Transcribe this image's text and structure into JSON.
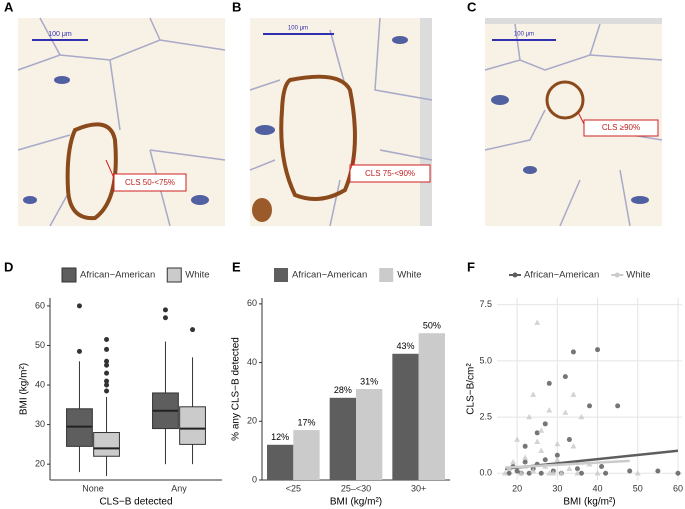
{
  "panels": [
    {
      "letter": "A",
      "scale_bar": "100 μm",
      "callout": "CLS 50-<75%"
    },
    {
      "letter": "B",
      "scale_bar": "100 μm",
      "callout": "CLS 75-<90%"
    },
    {
      "letter": "C",
      "scale_bar": "100 μm",
      "callout": "CLS ≥90%"
    }
  ],
  "chart_data": [
    {
      "type": "box",
      "panel_label": "D",
      "x_label": "CLS−B detected",
      "y_label": "BMI (kg/m²)",
      "categories": [
        "None",
        "Any"
      ],
      "ylim": [
        16,
        62
      ],
      "yticks": [
        20,
        30,
        40,
        50,
        60
      ],
      "grid": false,
      "legend": "top",
      "series": [
        {
          "name": "African−American",
          "color": "#5e5e5e",
          "values": [
            {
              "low": 18,
              "q1": 24.5,
              "median": 29.5,
              "q3": 34,
              "high": 46,
              "outliers": [
                48.5,
                60
              ]
            },
            {
              "low": 20,
              "q1": 29,
              "median": 33.5,
              "q3": 38,
              "high": 51,
              "outliers": [
                57,
                59
              ]
            }
          ]
        },
        {
          "name": "White",
          "color": "#cbcbcb",
          "values": [
            {
              "low": 17,
              "q1": 22,
              "median": 24,
              "q3": 28,
              "high": 37,
              "outliers": [
                38.5,
                40,
                41,
                43,
                45,
                46,
                49,
                51.5
              ]
            },
            {
              "low": 20,
              "q1": 25,
              "median": 29,
              "q3": 34.5,
              "high": 47,
              "outliers": [
                54
              ]
            }
          ]
        }
      ]
    },
    {
      "type": "bar",
      "panel_label": "E",
      "x_label": "BMI (kg/m²)",
      "y_label": "% any CLS−B detected",
      "categories": [
        "<25",
        "25–<30",
        "30+"
      ],
      "ylim": [
        0,
        62
      ],
      "yticks": [
        0,
        20,
        40,
        60
      ],
      "grid": false,
      "legend": "top",
      "series": [
        {
          "name": "African−American",
          "color": "#5e5e5e",
          "values": [
            12,
            28,
            43
          ],
          "value_labels": [
            "12%",
            "28%",
            "43%"
          ]
        },
        {
          "name": "White",
          "color": "#cbcbcb",
          "values": [
            17,
            31,
            50
          ],
          "value_labels": [
            "17%",
            "31%",
            "50%"
          ]
        }
      ]
    },
    {
      "type": "scatter",
      "panel_label": "F",
      "x_label": "BMI (kg/m²)",
      "y_label": "CLS−B/cm²",
      "xlim": [
        15,
        61
      ],
      "xticks": [
        20,
        30,
        40,
        50,
        60
      ],
      "ylim": [
        -0.3,
        7.8
      ],
      "yticks": [
        {
          "value": 0,
          "label": "0.0"
        },
        {
          "value": 2.5,
          "label": "2.5"
        },
        {
          "value": 5,
          "label": "5.0"
        },
        {
          "value": 7.5,
          "label": "7.5"
        }
      ],
      "grid": true,
      "legend": "top",
      "series": [
        {
          "name": "African−American",
          "color": "#5e5e5e",
          "marker": "circle",
          "x": [
            18,
            19,
            20,
            21,
            22,
            22,
            23,
            24,
            25,
            25,
            26,
            27,
            27,
            28,
            29,
            30,
            31,
            32,
            33,
            34,
            35,
            36,
            38,
            40,
            41,
            42,
            45,
            48,
            55,
            60
          ],
          "values": [
            0,
            0.3,
            0.1,
            0,
            0.5,
            1.2,
            0,
            0.2,
            1.8,
            0.4,
            0,
            2.2,
            0.6,
            4.0,
            0.1,
            0.8,
            0,
            4.3,
            1.5,
            5.4,
            0.2,
            0,
            3.0,
            5.5,
            0.3,
            0,
            3.0,
            0.1,
            0.1,
            0
          ],
          "trend": {
            "x": [
              17,
              60
            ],
            "y": [
              0.2,
              1.0
            ]
          }
        },
        {
          "name": "White",
          "color": "#cbcbcb",
          "marker": "triangle",
          "x": [
            17,
            18,
            19,
            20,
            21,
            22,
            23,
            24,
            25,
            26,
            27,
            28,
            29,
            30,
            31,
            32,
            33,
            34,
            35,
            36,
            38,
            40,
            24,
            26,
            22,
            30,
            28,
            34,
            50,
            25
          ],
          "values": [
            0,
            0.2,
            0.5,
            1.5,
            0,
            0.7,
            2.5,
            3.5,
            6.7,
            1.0,
            0.3,
            2.8,
            0,
            1.3,
            0,
            2.7,
            0.2,
            3.5,
            0,
            2.5,
            0.4,
            0,
            0.1,
            1.9,
            0.3,
            0.6,
            0,
            1.2,
            0,
            1.4
          ],
          "trend": {
            "x": [
              17,
              48
            ],
            "y": [
              0.25,
              0.55
            ]
          }
        }
      ]
    }
  ]
}
